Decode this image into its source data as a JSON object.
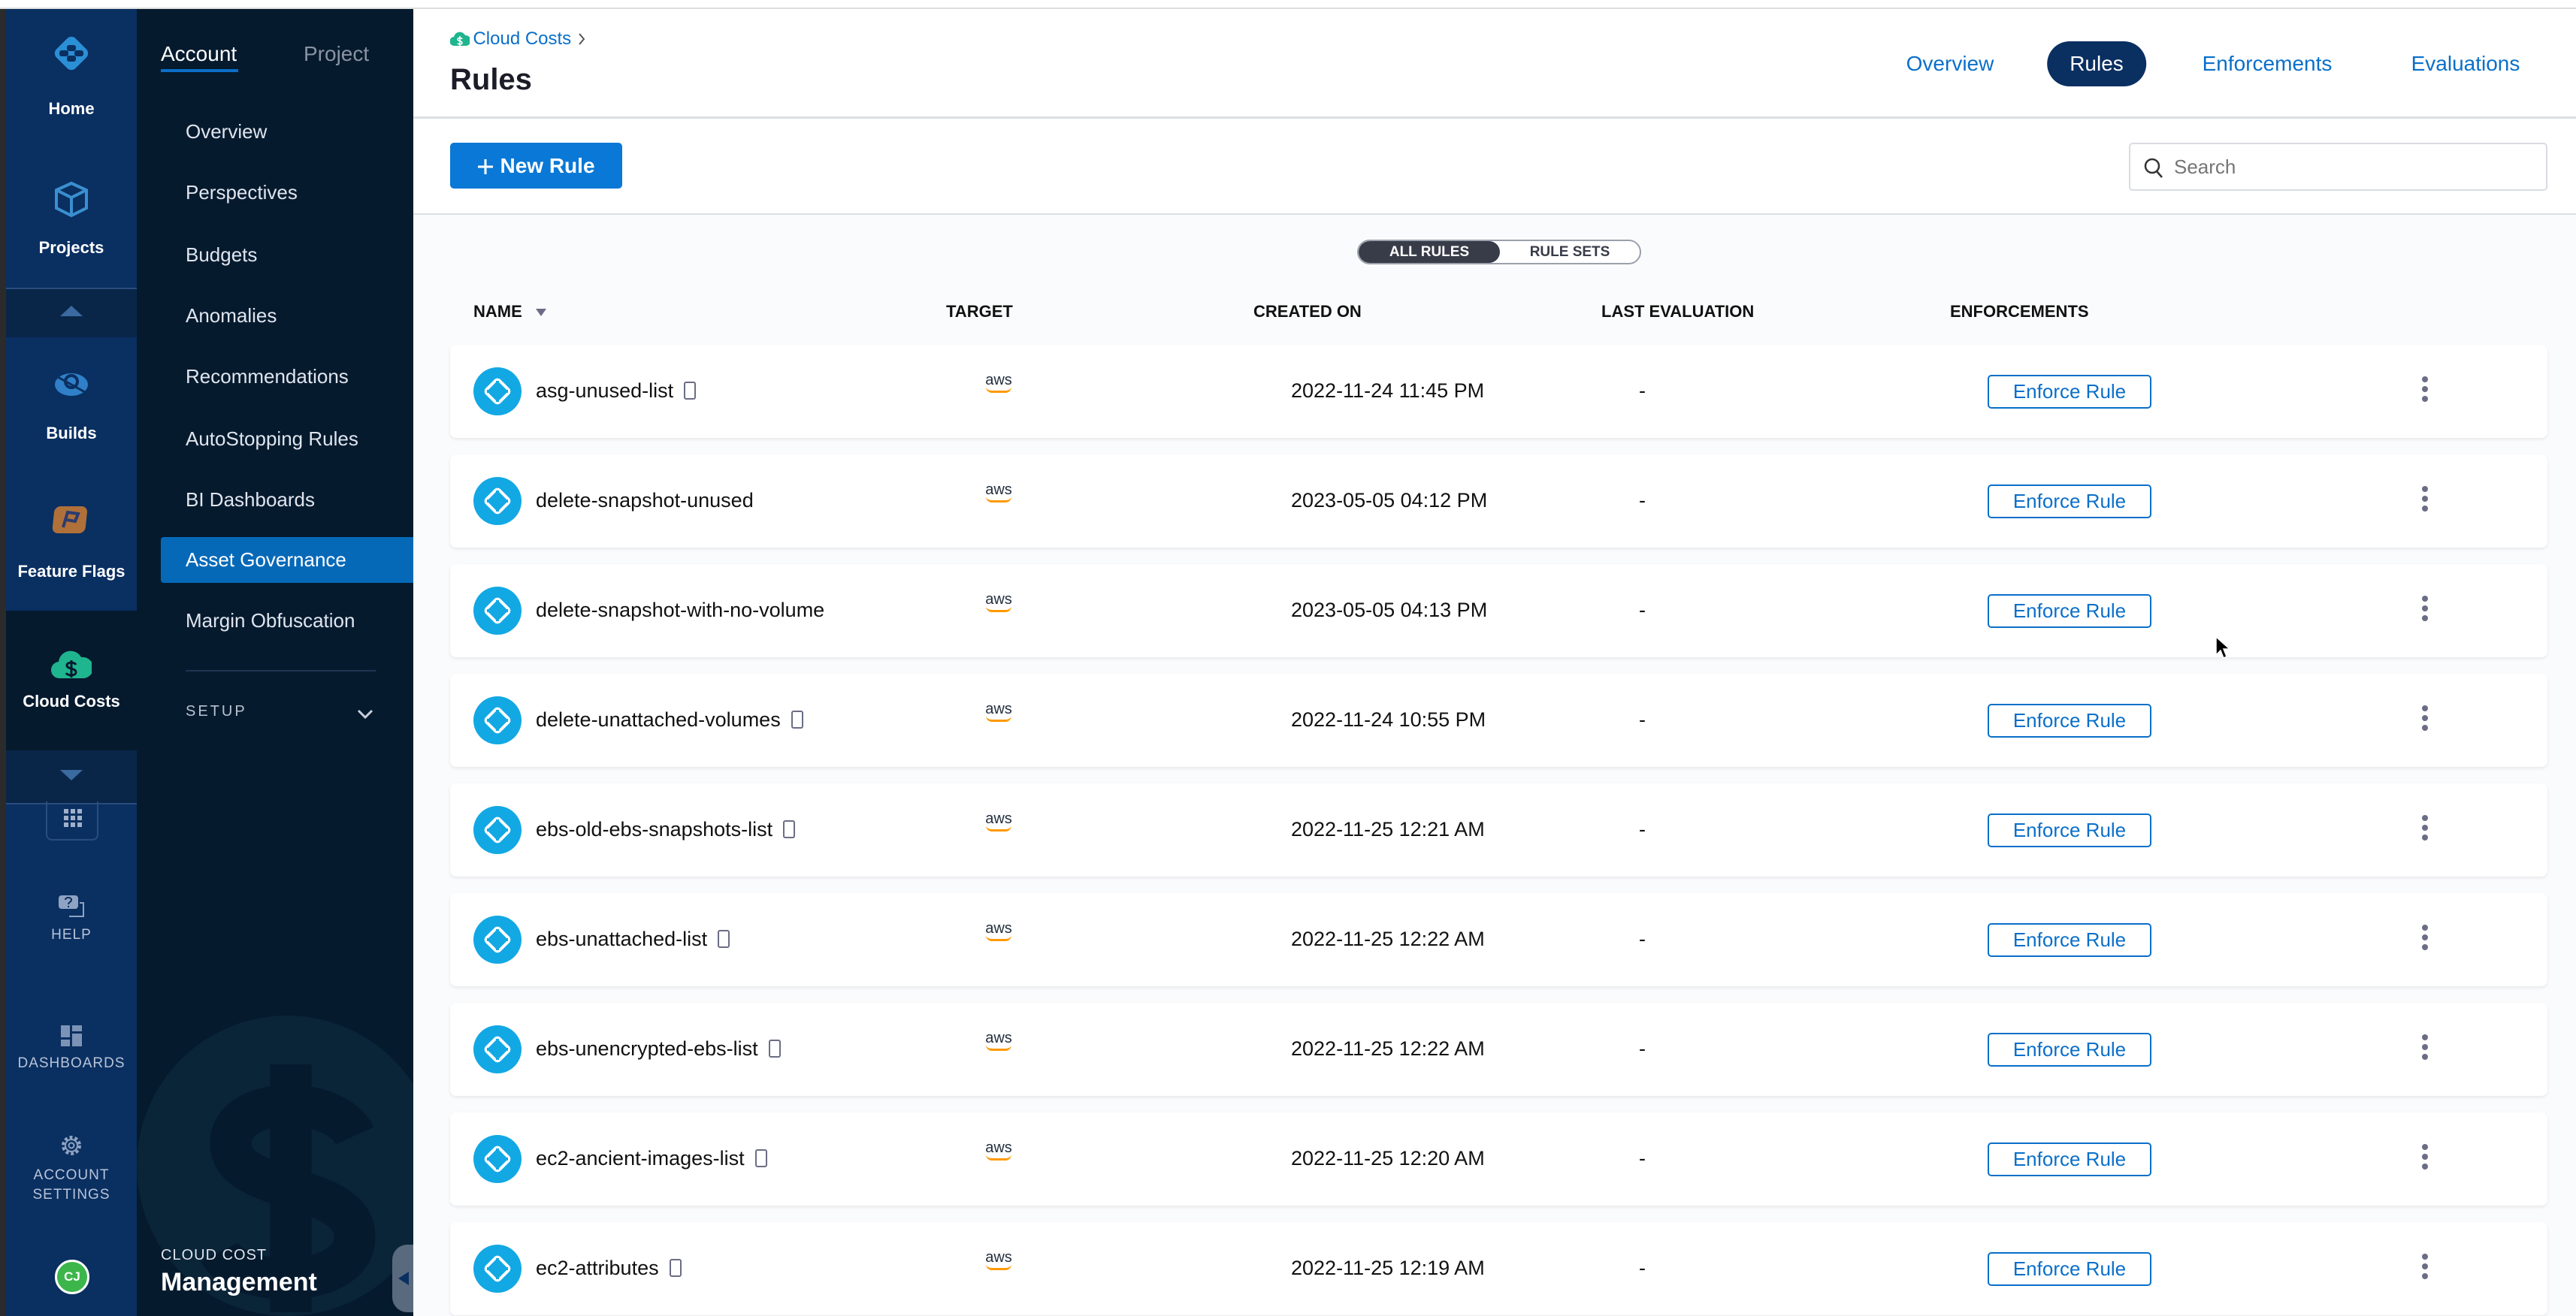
{
  "rail": {
    "home": "Home",
    "projects": "Projects",
    "builds": "Builds",
    "feature_flags": "Feature Flags",
    "cloud_costs": "Cloud Costs",
    "help": "HELP",
    "dashboards": "DASHBOARDS",
    "account_settings_1": "ACCOUNT",
    "account_settings_2": "SETTINGS",
    "avatar": "CJ"
  },
  "subnav": {
    "tabs": [
      "Account",
      "Project"
    ],
    "items": [
      "Overview",
      "Perspectives",
      "Budgets",
      "Anomalies",
      "Recommendations",
      "AutoStopping Rules",
      "BI Dashboards",
      "Asset Governance",
      "Margin Obfuscation"
    ],
    "selected": "Asset Governance",
    "setup": "SETUP",
    "module_small": "CLOUD COST",
    "module_big": "Management"
  },
  "header": {
    "breadcrumb": "Cloud Costs",
    "title": "Rules",
    "tabs": [
      "Overview",
      "Rules",
      "Enforcements",
      "Evaluations"
    ],
    "active_tab": "Rules"
  },
  "toolbar": {
    "new_rule": "New Rule",
    "search_placeholder": "Search"
  },
  "toggle": {
    "all_rules": "ALL RULES",
    "rule_sets": "RULE SETS",
    "active": "ALL RULES"
  },
  "table": {
    "columns": [
      "NAME",
      "TARGET",
      "CREATED ON",
      "LAST EVALUATION",
      "ENFORCEMENTS"
    ],
    "enforce_label": "Enforce Rule",
    "rows": [
      {
        "name": "asg-unused-list",
        "has_doc": true,
        "target": "aws",
        "created": "2022-11-24 11:45 PM",
        "last_eval": "-"
      },
      {
        "name": "delete-snapshot-unused",
        "has_doc": false,
        "target": "aws",
        "created": "2023-05-05 04:12 PM",
        "last_eval": "-"
      },
      {
        "name": "delete-snapshot-with-no-volume",
        "has_doc": false,
        "target": "aws",
        "created": "2023-05-05 04:13 PM",
        "last_eval": "-"
      },
      {
        "name": "delete-unattached-volumes",
        "has_doc": true,
        "target": "aws",
        "created": "2022-11-24 10:55 PM",
        "last_eval": "-"
      },
      {
        "name": "ebs-old-ebs-snapshots-list",
        "has_doc": true,
        "target": "aws",
        "created": "2022-11-25 12:21 AM",
        "last_eval": "-"
      },
      {
        "name": "ebs-unattached-list",
        "has_doc": true,
        "target": "aws",
        "created": "2022-11-25 12:22 AM",
        "last_eval": "-"
      },
      {
        "name": "ebs-unencrypted-ebs-list",
        "has_doc": true,
        "target": "aws",
        "created": "2022-11-25 12:22 AM",
        "last_eval": "-"
      },
      {
        "name": "ec2-ancient-images-list",
        "has_doc": true,
        "target": "aws",
        "created": "2022-11-25 12:20 AM",
        "last_eval": "-"
      },
      {
        "name": "ec2-attributes",
        "has_doc": true,
        "target": "aws",
        "created": "2022-11-25 12:19 AM",
        "last_eval": "-"
      }
    ]
  },
  "colors": {
    "rail": "#0a2f61",
    "subnav": "#061a2e",
    "accent": "#0a6fc9",
    "selected": "#0669b8",
    "rule_icon": "#12a8e4"
  }
}
